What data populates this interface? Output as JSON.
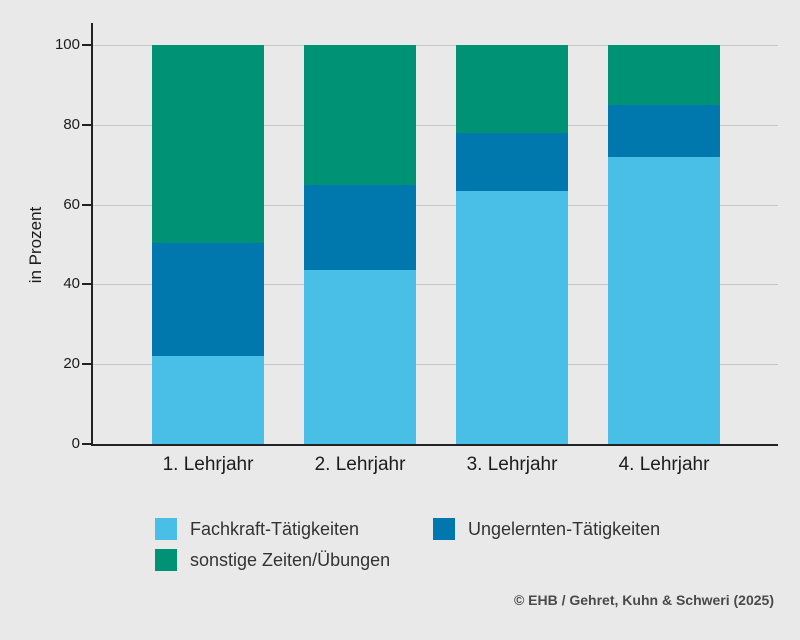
{
  "chart_data": {
    "type": "bar",
    "stacked": true,
    "title": "",
    "xlabel": "",
    "ylabel": "in Prozent",
    "ylim": [
      0,
      100
    ],
    "yticks": [
      0,
      20,
      40,
      60,
      80,
      100
    ],
    "grid": true,
    "legend_position": "bottom",
    "categories": [
      "1. Lehrjahr",
      "2. Lehrjahr",
      "3. Lehrjahr",
      "4. Lehrjahr"
    ],
    "series": [
      {
        "name": "Fachkraft-Tätigkeiten",
        "color": "#49bee6",
        "values": [
          22,
          43.5,
          63.5,
          72
        ]
      },
      {
        "name": "Ungelernten-Tätigkeiten",
        "color": "#0077ad",
        "values": [
          28.5,
          21.5,
          14.5,
          13
        ]
      },
      {
        "name": "sonstige Zeiten/Übungen",
        "color": "#009274",
        "values": [
          49.5,
          35,
          22,
          15
        ]
      }
    ]
  },
  "colors": {
    "background": "#e9e9e9",
    "gridline": "#c5c5c5",
    "axis": "#222222",
    "text": "#1c1c1c",
    "legend_text": "#333333",
    "attribution_text": "#4a4a4a"
  },
  "attribution": "© EHB / Gehret, Kuhn & Schweri (2025)"
}
